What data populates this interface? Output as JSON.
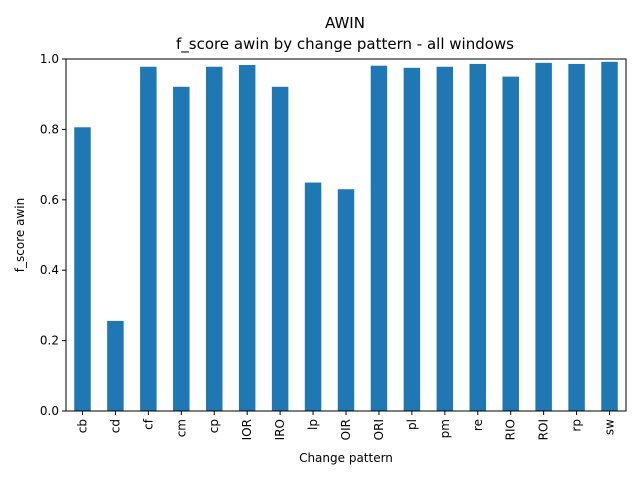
{
  "chart_data": {
    "type": "bar",
    "title": "AWIN",
    "subtitle": "f_score awin by change pattern - all windows",
    "xlabel": "Change pattern",
    "ylabel": "f_score awin",
    "categories": [
      "cb",
      "cd",
      "cf",
      "cm",
      "cp",
      "IOR",
      "IRO",
      "lp",
      "OIR",
      "ORI",
      "pl",
      "pm",
      "re",
      "RIO",
      "ROI",
      "rp",
      "sw"
    ],
    "values": [
      0.806,
      0.256,
      0.978,
      0.921,
      0.978,
      0.983,
      0.921,
      0.649,
      0.63,
      0.981,
      0.975,
      0.978,
      0.986,
      0.95,
      0.989,
      0.986,
      0.992
    ],
    "ylim": [
      0,
      1.0
    ],
    "yticks": [
      "0.0",
      "0.2",
      "0.4",
      "0.6",
      "0.8",
      "1.0"
    ],
    "bar_color": "#1f77b4",
    "grid": false,
    "legend": "none"
  }
}
